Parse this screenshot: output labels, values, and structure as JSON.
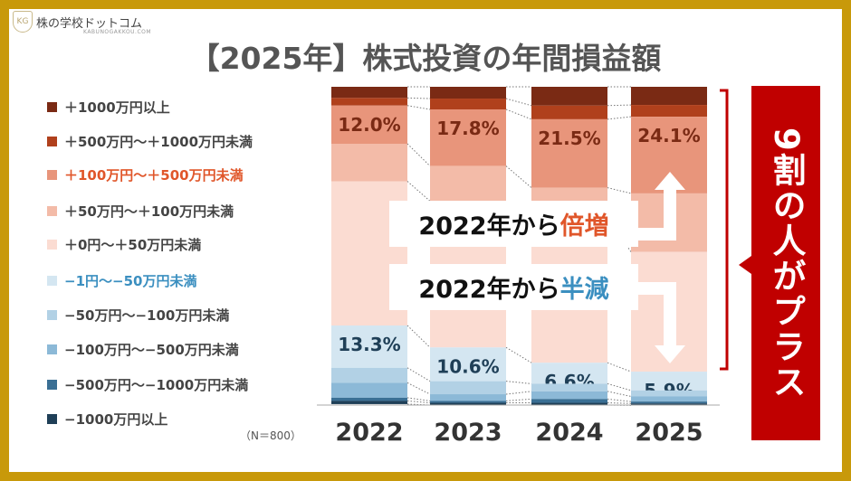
{
  "logo": {
    "name": "株の学校ドットコム",
    "sub": "KABUNOGAKKOU.COM",
    "mark": "KG"
  },
  "title": "【2025年】株式投資の年間損益額",
  "note": "（N＝800）",
  "callout": "9割の人がプラス",
  "box_up": {
    "prefix": "2022年から",
    "emph": "倍増",
    "emph_color": "#e0562a"
  },
  "box_down": {
    "prefix": "2022年から",
    "emph": "半減",
    "emph_color": "#3b8fc0"
  },
  "chart_data": {
    "type": "bar",
    "stacked": true,
    "title": "【2025年】株式投資の年間損益額",
    "categories": [
      "2022",
      "2023",
      "2024",
      "2025"
    ],
    "ylim": [
      0,
      100
    ],
    "series": [
      {
        "name": "＋1000万円以上",
        "color": "#7a2a14",
        "label_color": "#444",
        "values": [
          3.5,
          3.7,
          5.9,
          5.7
        ]
      },
      {
        "name": "＋500万円〜＋1000万円未満",
        "color": "#b0401c",
        "label_color": "#444",
        "values": [
          2.4,
          3.4,
          4.3,
          3.7
        ]
      },
      {
        "name": "＋100万円〜＋500万円未満",
        "color": "#e8957b",
        "label_color": "#e0562a",
        "values": [
          12.0,
          17.8,
          21.5,
          24.1
        ]
      },
      {
        "name": "＋50万円〜＋100万円未満",
        "color": "#f3bba8",
        "label_color": "#444",
        "values": [
          11.8,
          11,
          9,
          18.4
        ]
      },
      {
        "name": "＋0円〜＋50万円未満",
        "color": "#fbdcd2",
        "label_color": "#444",
        "values": [
          45.3,
          46,
          46,
          37.6
        ]
      },
      {
        "name": "−1円〜−50万円未満",
        "color": "#d4e6f1",
        "label_color": "#3b8fc0",
        "values": [
          13.3,
          10.6,
          6.6,
          5.9
        ]
      },
      {
        "name": "−50万円〜−100万円未満",
        "color": "#b2d1e5",
        "label_color": "#444",
        "values": [
          4.7,
          4.1,
          2.4,
          1.9
        ]
      },
      {
        "name": "−100万円〜−500万円未満",
        "color": "#8cb9d7",
        "label_color": "#444",
        "values": [
          4.7,
          2.1,
          2.4,
          1.6
        ]
      },
      {
        "name": "−500万円〜−1000万円未満",
        "color": "#3a6f94",
        "label_color": "#444",
        "values": [
          1.0,
          0.6,
          1.2,
          0.6
        ]
      },
      {
        "name": "−1000万円以上",
        "color": "#1f3f57",
        "label_color": "#444",
        "values": [
          1.0,
          0.7,
          0.7,
          0.6
        ]
      }
    ],
    "data_labels": [
      {
        "series": 2,
        "text": [
          "12.0%",
          "17.8%",
          "21.5%",
          "24.1%"
        ]
      },
      {
        "series": 5,
        "text": [
          "13.3%",
          "10.6%",
          "6.6%",
          "5.9%"
        ]
      }
    ]
  }
}
